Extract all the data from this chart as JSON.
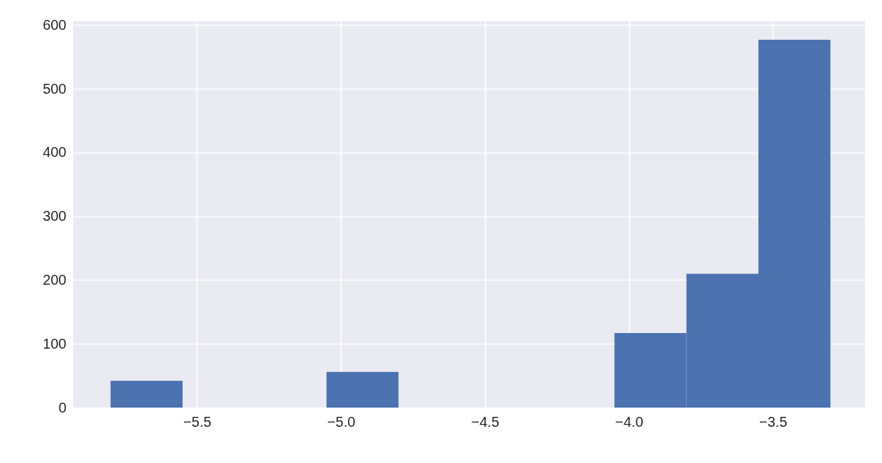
{
  "chart_data": {
    "type": "histogram",
    "bins": [
      -5.8,
      -5.55,
      -5.05,
      -4.8,
      -4.05,
      -3.8,
      -3.55,
      -3.3
    ],
    "values": [
      42,
      0,
      56,
      0,
      117,
      210,
      577
    ],
    "color": "#4c72b0",
    "xlim": [
      -5.93,
      -3.18
    ],
    "xticks": [
      -5.5,
      {
        "value": -5,
        "label": "−5.0"
      },
      -4.5,
      {
        "value": -4,
        "label": "−4.0"
      },
      -3.5
    ],
    "ylim": [
      0,
      606
    ],
    "yticks": [
      0,
      100,
      200,
      300,
      400,
      500,
      600
    ],
    "grid": true
  }
}
